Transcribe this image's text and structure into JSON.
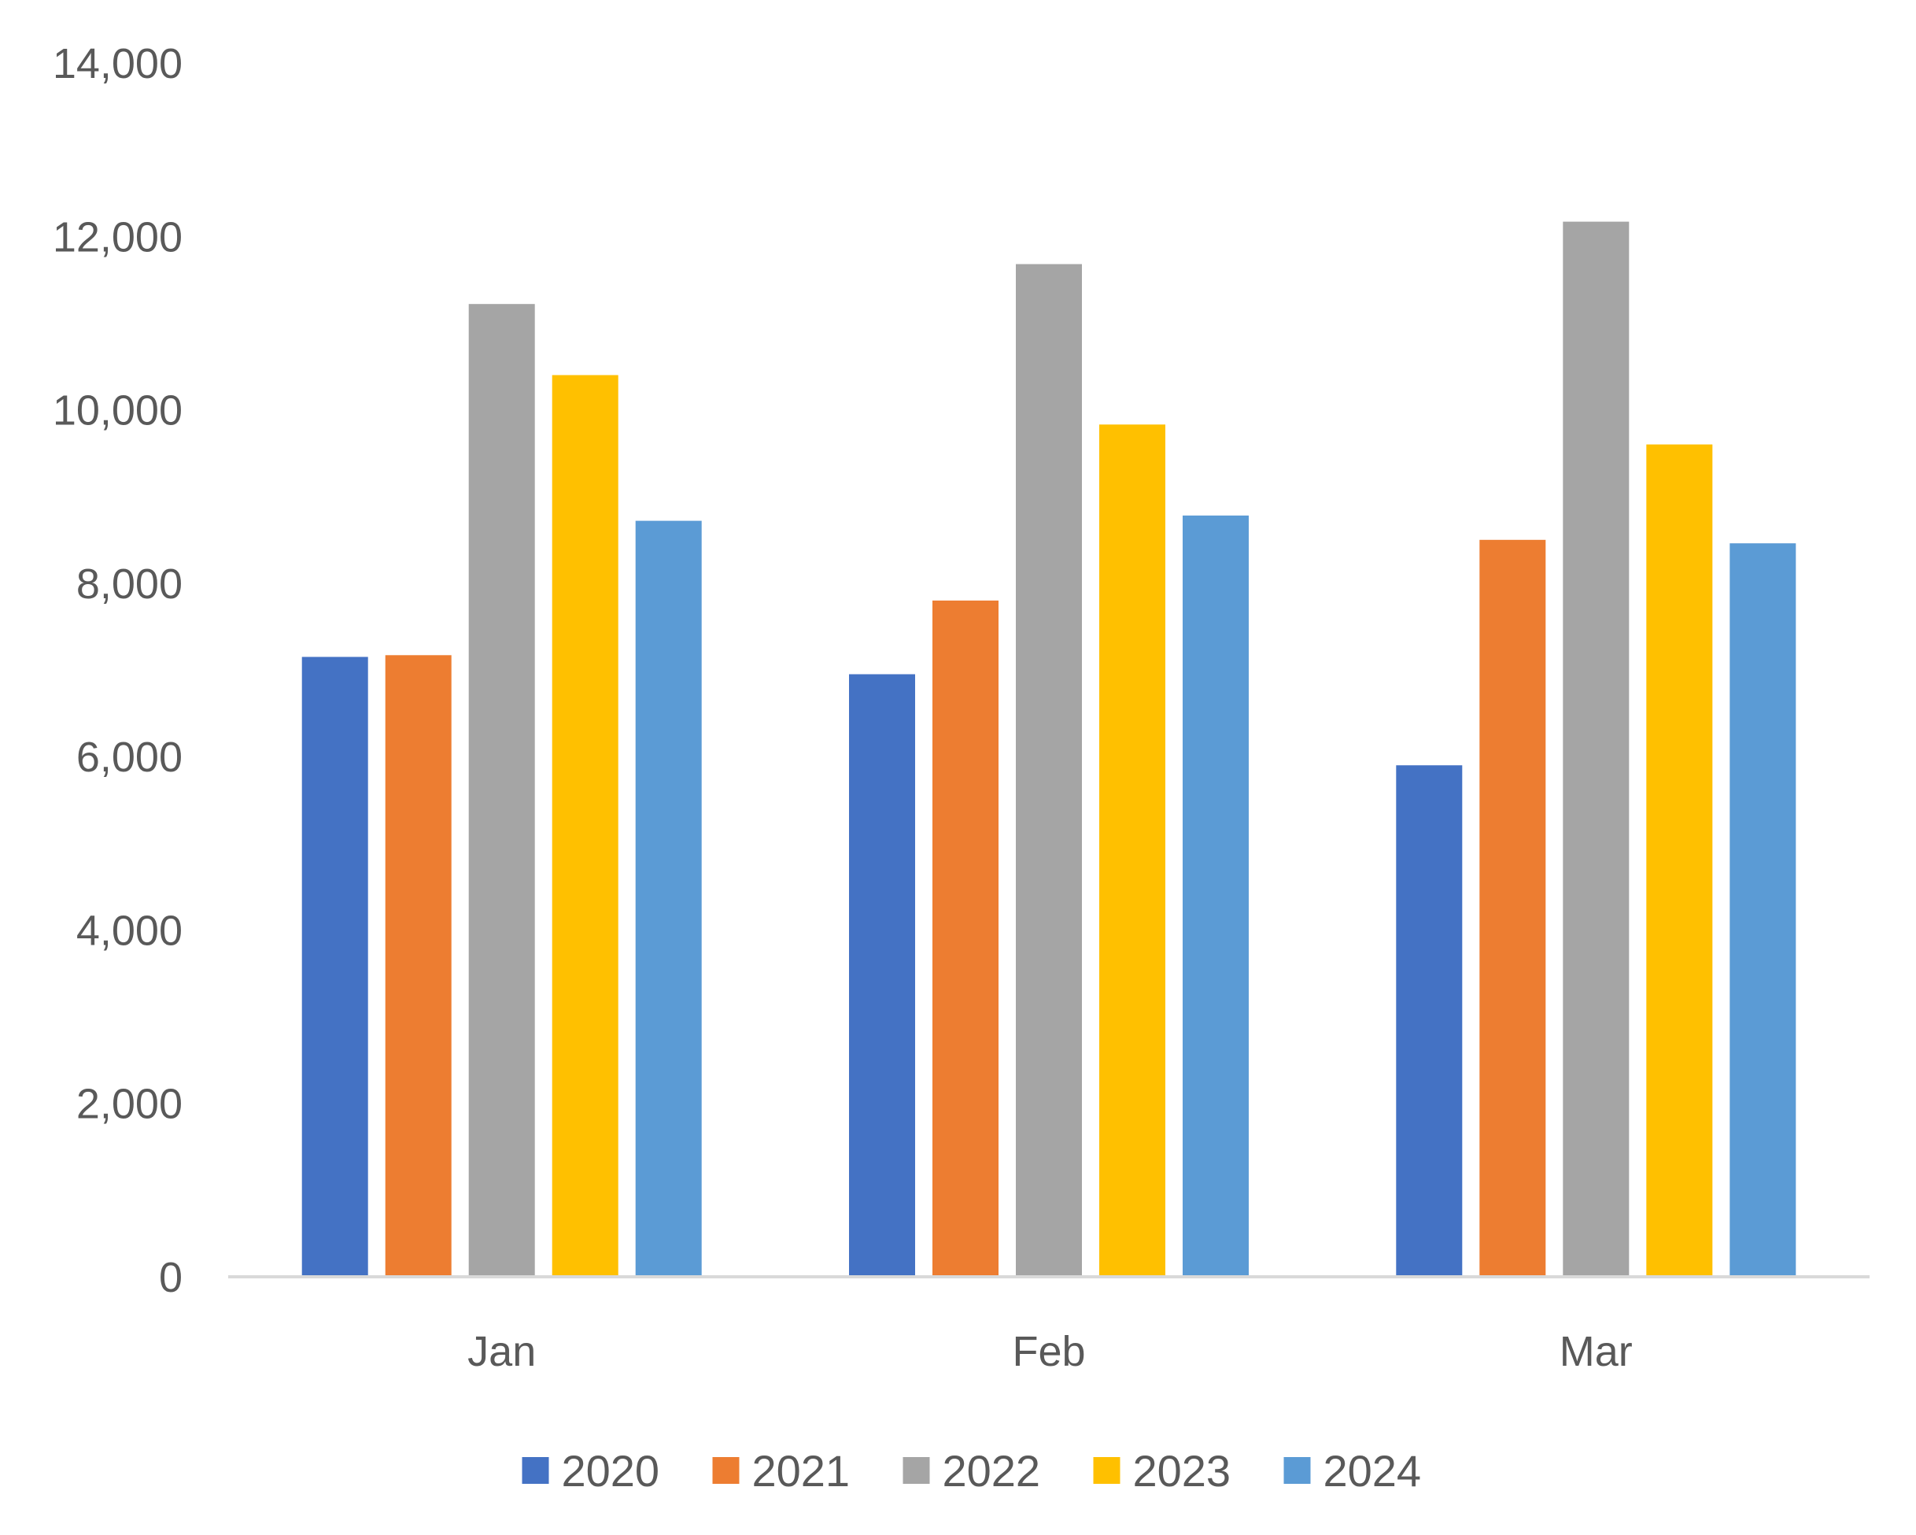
{
  "chart_data": {
    "type": "bar",
    "title": "",
    "xlabel": "",
    "ylabel": "",
    "categories": [
      "Jan",
      "Feb",
      "Mar"
    ],
    "ylim": [
      0,
      14000
    ],
    "yticks": [
      0,
      2000,
      4000,
      6000,
      8000,
      10000,
      12000,
      14000
    ],
    "ytick_labels": [
      "0",
      "2,000",
      "4,000",
      "6,000",
      "8,000",
      "10,000",
      "12,000",
      "14,000"
    ],
    "grid": false,
    "legend_position": "bottom",
    "series": [
      {
        "name": "2020",
        "color": "#4472C4",
        "values": [
          7150,
          6950,
          5900
        ]
      },
      {
        "name": "2021",
        "color": "#ED7D31",
        "values": [
          7170,
          7800,
          8500
        ]
      },
      {
        "name": "2022",
        "color": "#A5A5A5",
        "values": [
          11220,
          11680,
          12170
        ]
      },
      {
        "name": "2023",
        "color": "#FFC000",
        "values": [
          10400,
          9830,
          9600
        ]
      },
      {
        "name": "2024",
        "color": "#5B9BD5",
        "values": [
          8720,
          8780,
          8460
        ]
      }
    ]
  }
}
